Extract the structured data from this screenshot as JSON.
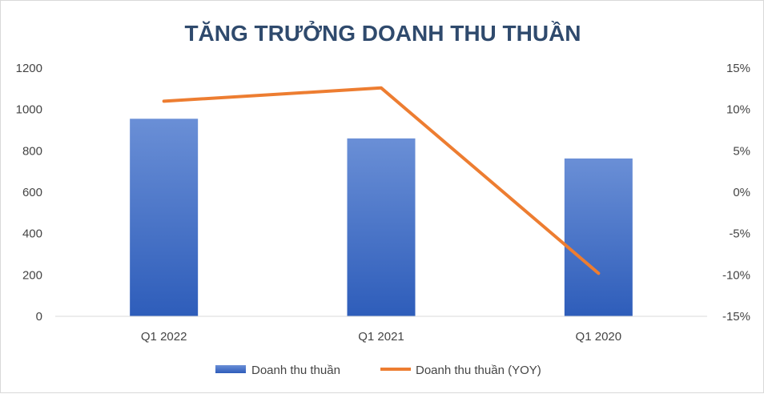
{
  "chart_data": {
    "type": "bar",
    "title": "TĂNG TRƯỞNG DOANH THU THUẦN",
    "categories": [
      "Q1 2022",
      "Q1 2021",
      "Q1 2020"
    ],
    "series": [
      {
        "name": "Doanh thu thuần",
        "type": "bar",
        "axis": "left",
        "values": [
          955,
          860,
          763
        ],
        "color": "#4472c4"
      },
      {
        "name": "Doanh thu thuần (YOY)",
        "type": "line",
        "axis": "right",
        "values": [
          0.11,
          0.126,
          -0.098
        ],
        "color": "#ed7d31"
      }
    ],
    "left_axis": {
      "ylim": [
        0,
        1200
      ],
      "ticks": [
        0,
        200,
        400,
        600,
        800,
        1000,
        1200
      ],
      "tick_labels": [
        "0",
        "200",
        "400",
        "600",
        "800",
        "1000",
        "1200"
      ]
    },
    "right_axis": {
      "ylim": [
        -0.15,
        0.15
      ],
      "ticks": [
        -0.15,
        -0.1,
        -0.05,
        0,
        0.05,
        0.1,
        0.15
      ],
      "tick_labels": [
        "-15%",
        "-10%",
        "-5%",
        "0%",
        "5%",
        "10%",
        "15%"
      ]
    },
    "grid": false,
    "legend_position": "bottom"
  }
}
